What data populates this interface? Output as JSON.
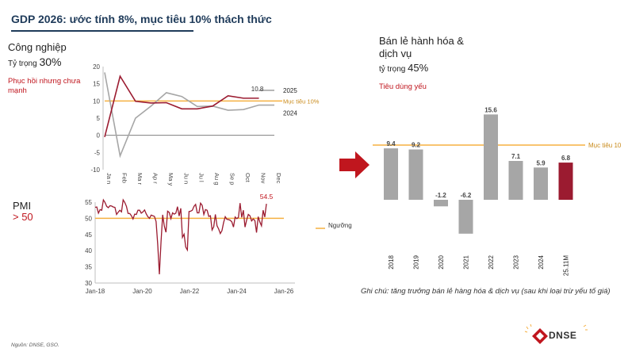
{
  "title": "GDP 2026: ước tính 8%, mục tiêu 10% thách thức",
  "industry": {
    "title": "Công nghiệp",
    "share_prefix": "Tỷ trọng ",
    "share_value": "30%",
    "note": "Phục hồi nhưng chưa mạnh"
  },
  "pmi": {
    "title": "PMI",
    "threshold_text": "> 50"
  },
  "retail": {
    "title": "Bán lẻ hành hóa & dịch vụ",
    "share_prefix": "tỷ trọng ",
    "share_value": "45%",
    "note": "Tiêu dùng yếu",
    "footnote": "Ghi chú: tăng trưởng bán lẻ hàng hóa & dịch vụ (sau khi loại trừ yếu tố giá)"
  },
  "source": "Nguồn: DNSE, GSO.",
  "logo": {
    "text": "DNSE",
    "icon": "dnse-logo-icon",
    "color": "#c0161e"
  },
  "arrow": {
    "icon": "right-arrow-icon",
    "color": "#c0161e"
  },
  "colors": {
    "accent": "#c0161e",
    "dark_red": "#9b1b30",
    "gray": "#a6a6a6",
    "orange": "#f5b041",
    "navy": "#1f3b5a"
  },
  "chart_data": [
    {
      "type": "line",
      "id": "industry",
      "title": "Công nghiệp",
      "categories": [
        "Jan",
        "Feb",
        "Mar",
        "Apr",
        "May",
        "Jun",
        "Jul",
        "Aug",
        "Sep",
        "Oct",
        "Nov",
        "Dec"
      ],
      "tick_labels": [
        "Ja n",
        "Feb",
        "Ma r",
        "Ap r",
        "Ma y",
        "Ju n",
        "Ju l",
        "Au g",
        "Se p",
        "Oct",
        "Nov",
        "Dec"
      ],
      "ylim": [
        -10,
        20
      ],
      "yticks": [
        "20",
        "15",
        "10",
        "5",
        "0",
        "-5",
        "-10"
      ],
      "series": [
        {
          "name": "2024",
          "color": "#a6a6a6",
          "values": [
            18.3,
            -6,
            5,
            8.5,
            12.4,
            11.3,
            8.4,
            8.5,
            7.3,
            7.5,
            8.8,
            8.8
          ]
        },
        {
          "name": "2025",
          "color": "#9b1b30",
          "values": [
            -0.5,
            17.2,
            9.9,
            9.4,
            9.5,
            7.7,
            7.7,
            8.5,
            11.5,
            10.8,
            10.8,
            null
          ]
        },
        {
          "name": "",
          "color": "#a6a6a6",
          "values": [
            null,
            null,
            null,
            null,
            null,
            null,
            null,
            null,
            null,
            null,
            13.1,
            13.1
          ]
        }
      ],
      "target": {
        "value": 10,
        "label": "Mục tiêu 10%",
        "color": "#f5b041"
      },
      "annotations": [
        {
          "text": "10.8"
        },
        {
          "text": "2025"
        },
        {
          "text": "2024"
        }
      ]
    },
    {
      "type": "line",
      "id": "pmi",
      "title": "PMI",
      "x_range": [
        2018.0,
        2026.0
      ],
      "xticks": [
        "Jan-18",
        "Jan-20",
        "Jan-22",
        "Jan-24",
        "Jan-26"
      ],
      "ylim": [
        30,
        55
      ],
      "yticks": [
        "55",
        "50",
        "45",
        "40",
        "35",
        "30"
      ],
      "series": [
        {
          "name": "PMI",
          "color": "#9b1b30",
          "values": [
            53.4,
            53.5,
            51.6,
            52.7,
            52.5,
            55.7,
            54.9,
            53.7,
            53.3,
            53.9,
            53.8,
            53.5,
            53.4,
            51.2,
            51.9,
            52.5,
            52.0,
            55.7,
            54.9,
            53.7,
            51.5,
            51.5,
            50.8,
            49.8,
            51.3,
            51.2,
            52.5,
            52.5,
            51.6,
            52.0,
            52.6,
            51.4,
            50.5,
            50.0,
            51.0,
            50.8,
            50.6,
            49.0,
            41.9,
            32.7,
            42.7,
            51.1,
            47.6,
            45.7,
            52.2,
            51.8,
            49.9,
            51.7,
            51.3,
            51.6,
            53.6,
            50.7,
            53.1,
            44.1,
            45.1,
            41.1,
            40.2,
            52.1,
            52.2,
            52.5,
            53.7,
            54.3,
            51.7,
            51.7,
            54.7,
            54.0,
            51.2,
            52.7,
            52.5,
            50.6,
            50.8,
            46.4,
            47.4,
            51.2,
            47.7,
            46.7,
            45.3,
            46.2,
            48.7,
            50.5,
            49.7,
            49.6,
            49.4,
            48.9,
            47.3,
            50.4,
            49.9,
            50.3,
            54.7,
            50.3,
            52.5,
            47.3,
            49.5,
            51.2,
            50.8,
            49.2,
            49.8,
            49.3,
            45.6,
            50.5,
            48.9,
            47.7,
            52.5,
            50.4,
            54.5
          ]
        }
      ],
      "target": {
        "value": 50,
        "label": "Ngưỡng",
        "color": "#f5b041"
      },
      "annotations": [
        {
          "text": "54.5"
        }
      ]
    },
    {
      "type": "bar",
      "id": "retail",
      "title": "Bán lẻ hành hóa & dịch vụ",
      "categories": [
        "2018",
        "2019",
        "2020",
        "2021",
        "2022",
        "2023",
        "2024",
        "25.11M"
      ],
      "values": [
        9.4,
        9.2,
        -1.2,
        -6.2,
        15.6,
        7.1,
        5.9,
        6.8
      ],
      "value_labels": [
        "9.4",
        "9.2",
        "-1.2",
        "-6.2",
        "15.6",
        "7.1",
        "5.9",
        "6.8"
      ],
      "colors": [
        "#a6a6a6",
        "#a6a6a6",
        "#a6a6a6",
        "#a6a6a6",
        "#a6a6a6",
        "#a6a6a6",
        "#a6a6a6",
        "#9b1b30"
      ],
      "ylim": [
        -7,
        16
      ],
      "target": {
        "value": 10,
        "label": "Mục tiêu 10",
        "color": "#f5b041"
      }
    }
  ]
}
